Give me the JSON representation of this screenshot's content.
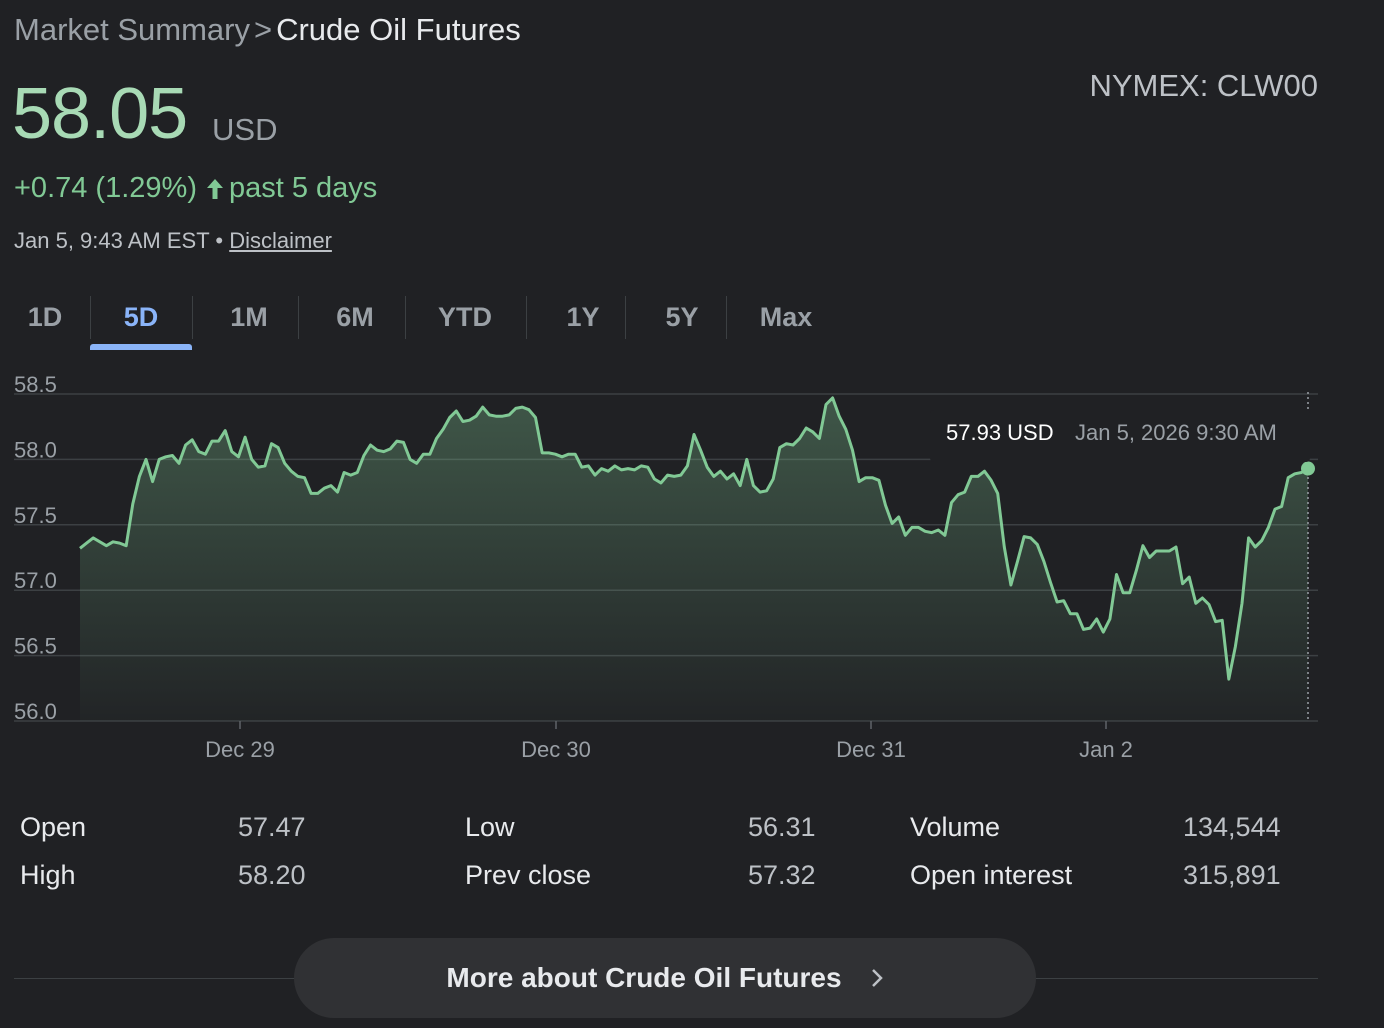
{
  "breadcrumb": {
    "parent": "Market Summary",
    "separator": ">",
    "current": "Crude Oil Futures"
  },
  "ticker": "NYMEX: CLW00",
  "price": {
    "value": "58.05",
    "currency": "USD"
  },
  "change": {
    "amount": "+0.74 (1.29%)",
    "period": "past 5 days",
    "icon": "arrow-up-icon",
    "color": "#81c995"
  },
  "timestamp": {
    "text": "Jan 5, 9:43 AM EST",
    "separator": "•",
    "disclaimer": "Disclaimer"
  },
  "tabs": [
    "1D",
    "5D",
    "1M",
    "6M",
    "YTD",
    "1Y",
    "5Y",
    "Max"
  ],
  "active_tab": "5D",
  "tooltip": {
    "value": "57.93 USD",
    "date": "Jan 5, 2026 9:30 AM"
  },
  "chart_data": {
    "type": "area",
    "ylim": [
      56.0,
      58.5
    ],
    "y_ticks": [
      "58.5",
      "58.0",
      "57.5",
      "57.0",
      "56.5",
      "56.0"
    ],
    "x_ticks": [
      "Dec 29",
      "Dec 30",
      "Dec 31",
      "Jan 2"
    ],
    "line_color": "#81c995",
    "series": [
      {
        "values": [
          57.32,
          57.36,
          57.4,
          57.37,
          57.34,
          57.37,
          57.36,
          57.34,
          57.66,
          57.87,
          58.0,
          57.83,
          58.0,
          58.02,
          58.03,
          57.97,
          58.11,
          58.15,
          58.06,
          58.04,
          58.14,
          58.14,
          58.22,
          58.06,
          58.02,
          58.17,
          58.0,
          57.94,
          57.95,
          58.12,
          58.09,
          57.97,
          57.91,
          57.87,
          57.86,
          57.74,
          57.74,
          57.78,
          57.8,
          57.75,
          57.9,
          57.88,
          57.9,
          58.03,
          58.11,
          58.07,
          58.06,
          58.08,
          58.14,
          58.13,
          58.0,
          57.97,
          58.04,
          58.04,
          58.16,
          58.23,
          58.32,
          58.37,
          58.29,
          58.3,
          58.33,
          58.4,
          58.34,
          58.33,
          58.33,
          58.34,
          58.39,
          58.4,
          58.38,
          58.32,
          58.05,
          58.05,
          58.04,
          58.02,
          58.04,
          58.04,
          57.94,
          57.95,
          57.88,
          57.93,
          57.91,
          57.95,
          57.92,
          57.93,
          57.92,
          57.95,
          57.94,
          57.85,
          57.82,
          57.88,
          57.87,
          57.88,
          57.95,
          58.19,
          58.07,
          57.94,
          57.87,
          57.91,
          57.85,
          57.89,
          57.8,
          58.0,
          57.8,
          57.75,
          57.76,
          57.85,
          58.09,
          58.12,
          58.11,
          58.16,
          58.24,
          58.21,
          58.16,
          58.42,
          58.47,
          58.33,
          58.23,
          58.07,
          57.83,
          57.86,
          57.86,
          57.84,
          57.65,
          57.51,
          57.56,
          57.42,
          57.48,
          57.48,
          57.45,
          57.44,
          57.46,
          57.42,
          57.67,
          57.73,
          57.75,
          57.87,
          57.87,
          57.91,
          57.84,
          57.74,
          57.33,
          57.04,
          57.22,
          57.41,
          57.4,
          57.35,
          57.22,
          57.06,
          56.91,
          56.92,
          56.82,
          56.82,
          56.7,
          56.71,
          56.78,
          56.68,
          56.78,
          57.12,
          56.98,
          56.98,
          57.15,
          57.34,
          57.25,
          57.3,
          57.3,
          57.3,
          57.33,
          57.05,
          57.1,
          56.9,
          56.94,
          56.89,
          56.76,
          56.77,
          56.32,
          56.57,
          56.9,
          57.4,
          57.33,
          57.38,
          57.48,
          57.62,
          57.64,
          57.86,
          57.89,
          57.9,
          57.93
        ]
      }
    ]
  },
  "stats": [
    {
      "label": "Open",
      "value": "57.47"
    },
    {
      "label": "High",
      "value": "58.20"
    },
    {
      "label": "Low",
      "value": "56.31"
    },
    {
      "label": "Prev close",
      "value": "57.32"
    },
    {
      "label": "Volume",
      "value": "134,544"
    },
    {
      "label": "Open interest",
      "value": "315,891"
    }
  ],
  "more_button": {
    "label": "More about Crude Oil Futures",
    "icon": "chevron-right-icon"
  }
}
